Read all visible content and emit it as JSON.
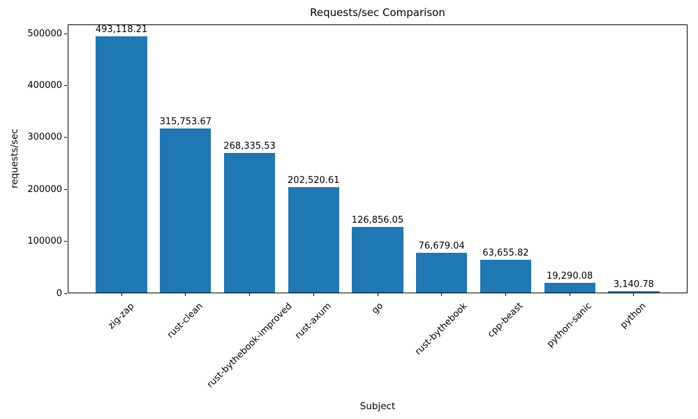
{
  "chart_data": {
    "type": "bar",
    "title": "Requests/sec Comparison",
    "xlabel": "Subject",
    "ylabel": "requests/sec",
    "categories": [
      "zig-zap",
      "rust-clean",
      "rust-bythebook-improved",
      "rust-axum",
      "go",
      "rust-bythebook",
      "cpp-beast",
      "python-sanic",
      "python"
    ],
    "values": [
      493118.21,
      315753.67,
      268335.53,
      202520.61,
      126856.05,
      76679.04,
      63655.82,
      19290.08,
      3140.78
    ],
    "bar_labels": [
      "493,118.21",
      "315,753.67",
      "268,335.53",
      "202,520.61",
      "126,856.05",
      "76,679.04",
      "63,655.82",
      "19,290.08",
      "3,140.78"
    ],
    "yticks": [
      0,
      100000,
      200000,
      300000,
      400000,
      500000
    ],
    "ytick_labels": [
      "0",
      "100000",
      "200000",
      "300000",
      "400000",
      "500000"
    ],
    "ylim": [
      0,
      517774
    ],
    "x_tick_rotation_deg": 45,
    "bar_color": "#1f77b4",
    "text_color": "#000000",
    "grid": false,
    "legend_position": "none"
  }
}
